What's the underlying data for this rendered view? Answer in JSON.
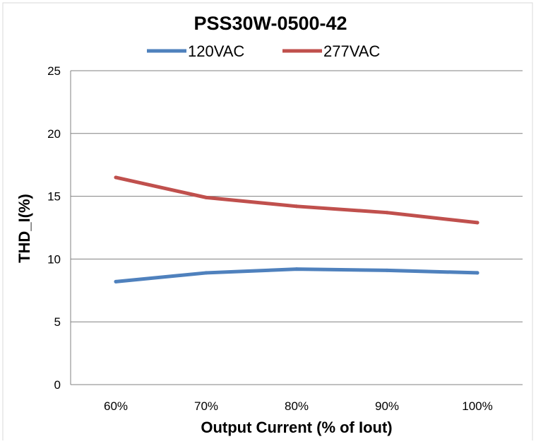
{
  "chart_data": {
    "type": "line",
    "title": "PSS30W-0500-42",
    "xlabel": "Output Current (% of Iout)",
    "ylabel": "THD_I(%)",
    "categories": [
      "60%",
      "70%",
      "80%",
      "90%",
      "100%"
    ],
    "ylim": [
      0,
      25
    ],
    "yticks": [
      "0",
      "5",
      "10",
      "15",
      "20",
      "25"
    ],
    "grid": "horizontal",
    "legend_position": "top",
    "series": [
      {
        "name": "120VAC",
        "color": "#4f81bd",
        "values": [
          8.2,
          8.9,
          9.2,
          9.1,
          8.9
        ]
      },
      {
        "name": "277VAC",
        "color": "#c0504d",
        "values": [
          16.5,
          14.9,
          14.2,
          13.7,
          12.9
        ]
      }
    ]
  }
}
